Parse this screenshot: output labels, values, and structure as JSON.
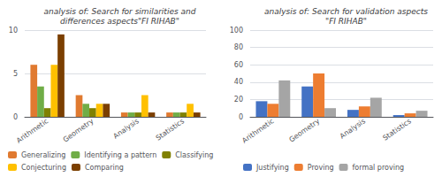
{
  "chart_data": [
    {
      "type": "bar",
      "title": "analysis of: Search for similarities and\ndifferences aspects\"FI RIHAB\"",
      "categories": [
        "Arithmetic",
        "Geometry",
        "Analysis",
        "Statistics"
      ],
      "series": [
        {
          "name": "Generalizing",
          "color": "#E07A30",
          "values": [
            6,
            2.5,
            0.5,
            0.5
          ]
        },
        {
          "name": "Identifying a pattern",
          "color": "#70AD47",
          "values": [
            3.5,
            1.5,
            0.5,
            0.5
          ]
        },
        {
          "name": "Classifying",
          "color": "#808000",
          "values": [
            1,
            1,
            0.5,
            0.5
          ]
        },
        {
          "name": "Conjecturing",
          "color": "#FFC000",
          "values": [
            6,
            1.5,
            2.5,
            1.5
          ]
        },
        {
          "name": "Comparing",
          "color": "#7B3F00",
          "values": [
            9.5,
            1.5,
            0.5,
            0.5
          ]
        }
      ],
      "ylim": [
        0,
        10
      ],
      "yticks": [
        0,
        5,
        10
      ],
      "grid": true,
      "legend": "bottom"
    },
    {
      "type": "bar",
      "title": "analysis of: Search for validation aspects\n\"FI RIHAB\"",
      "categories": [
        "Arithmetic",
        "Geometry",
        "Analysis",
        "Statistics"
      ],
      "series": [
        {
          "name": "Justifying",
          "color": "#4472C4",
          "values": [
            18,
            35,
            8,
            2
          ]
        },
        {
          "name": "Proving",
          "color": "#ED7D31",
          "values": [
            15,
            50,
            12,
            4
          ]
        },
        {
          "name": "formal proving",
          "color": "#A5A5A5",
          "values": [
            42,
            10,
            22,
            7
          ]
        }
      ],
      "ylim": [
        0,
        100
      ],
      "yticks": [
        0,
        20,
        40,
        60,
        80,
        100
      ],
      "grid": true,
      "legend": "bottom"
    }
  ]
}
